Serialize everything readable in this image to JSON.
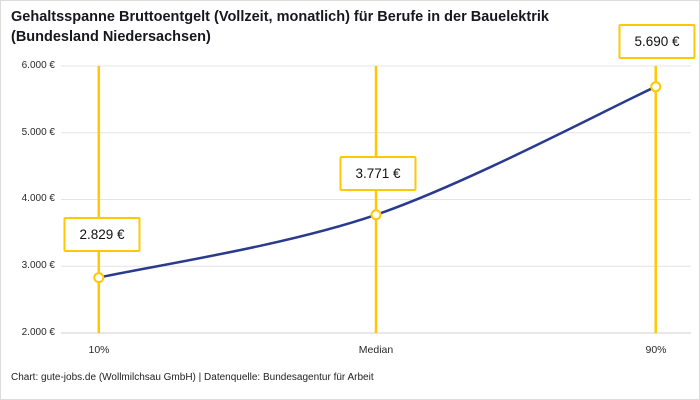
{
  "header": {
    "title_line1": "Gehaltsspanne Bruttoentgelt (Vollzeit, monatlich) für Berufe in der Bauelektrik",
    "title_line2": "(Bundesland Niedersachsen)"
  },
  "chart_data": {
    "type": "line",
    "title": "Gehaltsspanne Bruttoentgelt (Vollzeit, monatlich) für Berufe in der Bauelektrik (Bundesland Niedersachsen)",
    "categories": [
      "10%",
      "Median",
      "90%"
    ],
    "values": [
      2829,
      3771,
      5690
    ],
    "point_labels": [
      "2.829 €",
      "3.771 €",
      "5.690 €"
    ],
    "ylim": [
      2000,
      6000
    ],
    "yticks": [
      2000,
      3000,
      4000,
      5000,
      6000
    ],
    "ytick_labels": [
      "2.000 €",
      "3.000 €",
      "4.000 €",
      "5.000 €",
      "6.000 €"
    ],
    "grid": "horizontal",
    "legend": "none",
    "colors": {
      "line": "#2A3A8F",
      "accent": "#FFC805",
      "marker_fill": "#FFFFFF",
      "gridline": "#E4E4E4"
    }
  },
  "footer": {
    "credit": "Chart: gute-jobs.de (Wollmilchsau GmbH) | Datenquelle: Bundesagentur für Arbeit"
  }
}
